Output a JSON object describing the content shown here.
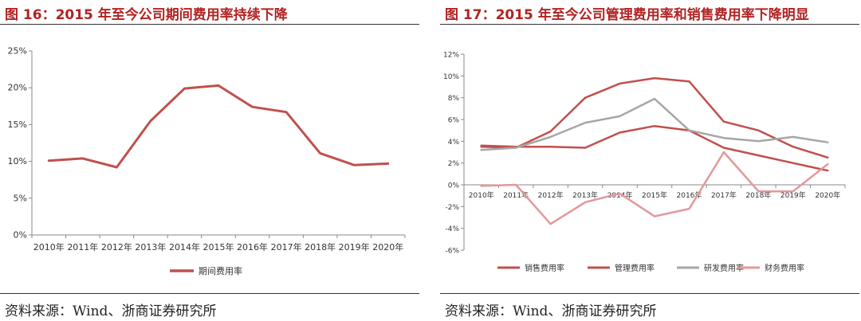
{
  "charts": [
    {
      "title": "图 16：2015 年至今公司期间费用率持续下降",
      "source": "资料来源：Wind、浙商证券研究所",
      "chart_data": {
        "type": "line",
        "categories": [
          "2010年",
          "2011年",
          "2012年",
          "2013年",
          "2014年",
          "2015年",
          "2016年",
          "2017年",
          "2018年",
          "2019年",
          "2020年"
        ],
        "series": [
          {
            "name": "期间费用率",
            "color": "#c0504d",
            "values": [
              10.1,
              10.4,
              9.2,
              15.5,
              19.9,
              20.3,
              17.4,
              16.7,
              11.1,
              9.5,
              9.7
            ]
          }
        ],
        "yticks": [
          "0%",
          "5%",
          "10%",
          "15%",
          "20%",
          "25%"
        ],
        "ylim": [
          0,
          25
        ],
        "legend": "bottom"
      }
    },
    {
      "title": "图 17：2015 年至今公司管理费用率和销售费用率下降明显",
      "source": "资料来源：Wind、浙商证券研究所",
      "chart_data": {
        "type": "line",
        "categories": [
          "2010年",
          "2011年",
          "2012年",
          "2013年",
          "2014年",
          "2015年",
          "2016年",
          "2017年",
          "2018年",
          "2019年",
          "2020年"
        ],
        "series": [
          {
            "name": "销售费用率",
            "color": "#c0504d",
            "values": [
              3.5,
              3.4,
              4.9,
              8.0,
              9.3,
              9.8,
              9.5,
              5.8,
              5.0,
              3.5,
              2.5
            ]
          },
          {
            "name": "管理费用率",
            "color": "#c0504d",
            "values": [
              3.6,
              3.5,
              3.5,
              3.4,
              4.8,
              5.4,
              5.0,
              3.4,
              2.7,
              2.0,
              1.3
            ]
          },
          {
            "name": "研发费用率",
            "color": "#a6a6a6",
            "values": [
              3.2,
              3.4,
              4.4,
              5.7,
              6.3,
              7.9,
              5.0,
              4.3,
              4.0,
              4.4,
              3.9
            ]
          },
          {
            "name": "财务费用率",
            "color": "#e3989a",
            "values": [
              -0.1,
              0.0,
              -3.6,
              -1.6,
              -0.8,
              -2.9,
              -2.2,
              3.0,
              -0.6,
              -0.6,
              1.9
            ]
          }
        ],
        "yticks": [
          "-6%",
          "-4%",
          "-2%",
          "0%",
          "2%",
          "4%",
          "6%",
          "8%",
          "10%",
          "12%"
        ],
        "ylim": [
          -6,
          12
        ],
        "legend": "bottom"
      }
    }
  ]
}
